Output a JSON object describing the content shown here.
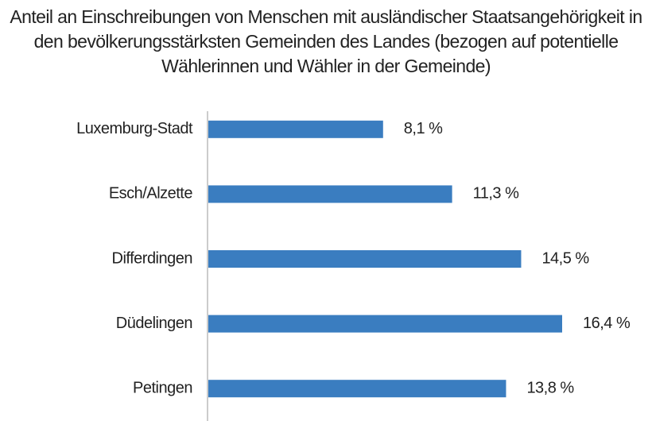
{
  "chart_data": {
    "type": "bar",
    "orientation": "horizontal",
    "title": "Anteil an Einschreibungen von Menschen mit ausländischer Staatsangehörigkeit in den bevölkerungsstärksten Gemeinden des Landes (bezogen auf potentielle Wählerinnen und Wähler in der Gemeinde)",
    "categories": [
      "Luxemburg-Stadt",
      "Esch/Alzette",
      "Differdingen",
      "Düdelingen",
      "Petingen"
    ],
    "values": [
      8.1,
      11.3,
      14.5,
      16.4,
      13.8
    ],
    "value_labels": [
      "8,1 %",
      "11,3 %",
      "14,5 %",
      "16,4 %",
      "13,8 %"
    ],
    "color": "#3a7dc0"
  }
}
